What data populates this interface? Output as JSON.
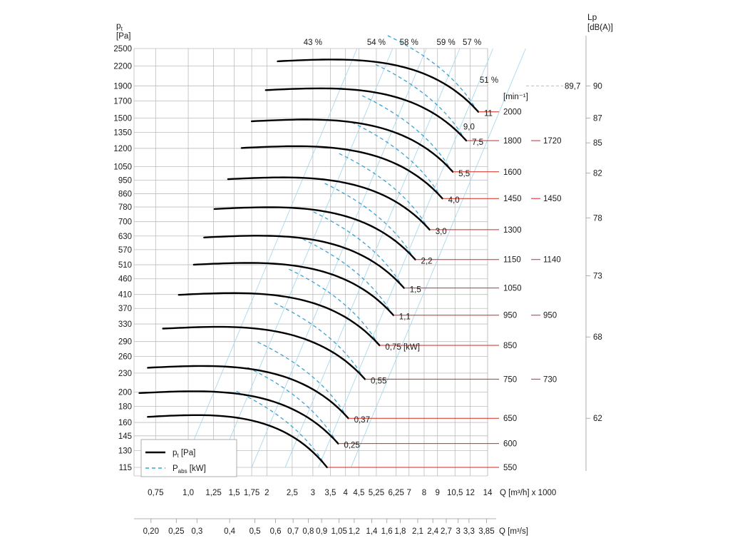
{
  "chart_data": {
    "type": "line",
    "title": "",
    "y_axis": {
      "label": "p",
      "label_sub": "t",
      "unit": "[Pa]",
      "scale": "log",
      "ticks": [
        2500,
        2200,
        1900,
        1700,
        1500,
        1350,
        1200,
        1050,
        950,
        860,
        780,
        700,
        630,
        570,
        510,
        460,
        410,
        370,
        330,
        290,
        260,
        230,
        200,
        180,
        160,
        145,
        130,
        115
      ]
    },
    "x_axis": {
      "label": "Q [m³/h] x 1000",
      "scale": "log",
      "ticks": [
        "0,75",
        "1,0",
        "1,25",
        "1,5",
        "1,75",
        "2",
        "2,5",
        "3",
        "3,5",
        "4",
        "4,5",
        "5,25",
        "6,25",
        "7",
        "8",
        "9",
        "10,5",
        "12",
        "14"
      ],
      "tick_values": [
        0.75,
        1.0,
        1.25,
        1.5,
        1.75,
        2,
        2.5,
        3,
        3.5,
        4,
        4.5,
        5.25,
        6.25,
        7,
        8,
        9,
        10.5,
        12,
        14
      ]
    },
    "x_axis2": {
      "label": "Q [m³/s]",
      "ticks": [
        "0,20",
        "0,25",
        "0,3",
        "0,4",
        "0,5",
        "0,6",
        "0,7",
        "0,8",
        "0,9",
        "1,05",
        "1,2",
        "1,4",
        "1,6",
        "1,8",
        "2,1",
        "2,4",
        "2,7",
        "3",
        "3,3",
        "3,85"
      ],
      "tick_values": [
        0.2,
        0.25,
        0.3,
        0.4,
        0.5,
        0.6,
        0.7,
        0.8,
        0.9,
        1.05,
        1.2,
        1.4,
        1.6,
        1.8,
        2.1,
        2.4,
        2.7,
        3.0,
        3.3,
        3.85
      ]
    },
    "right_axis": {
      "label": "Lp",
      "unit": "[dB(A)]",
      "ticks": [
        90,
        87,
        85,
        82,
        78,
        73,
        68,
        62
      ],
      "tick_pt": [
        1900,
        1500,
        1250,
        1000,
        720,
        470,
        300,
        165
      ]
    },
    "marker": {
      "label": "89,7",
      "pt": 1900
    },
    "speed_unit": "[min⁻¹]",
    "series": [
      {
        "rpm": "550",
        "pt_end": 115,
        "q_start": 0.7,
        "q_end": 3.4,
        "power": "",
        "stub": ""
      },
      {
        "rpm": "600",
        "pt_end": 137,
        "q_start": 0.65,
        "q_end": 3.75,
        "power": "0,25",
        "stub": ""
      },
      {
        "rpm": "650",
        "pt_end": 165,
        "q_start": 0.7,
        "q_end": 4.1,
        "power": "0,37",
        "stub": ""
      },
      {
        "rpm": "750",
        "pt_end": 220,
        "q_start": 0.8,
        "q_end": 4.75,
        "power": "0,55",
        "stub": "730"
      },
      {
        "rpm": "850",
        "pt_end": 282,
        "q_start": 0.92,
        "q_end": 5.4,
        "power": "0,75 [kW]",
        "stub": ""
      },
      {
        "rpm": "950",
        "pt_end": 352,
        "q_start": 1.05,
        "q_end": 6.1,
        "power": "1,1",
        "stub": "950"
      },
      {
        "rpm": "1050",
        "pt_end": 430,
        "q_start": 1.15,
        "q_end": 6.7,
        "power": "1,5",
        "stub": ""
      },
      {
        "rpm": "1150",
        "pt_end": 530,
        "q_start": 1.26,
        "q_end": 7.4,
        "power": "2,2",
        "stub": "1140"
      },
      {
        "rpm": "1300",
        "pt_end": 660,
        "q_start": 1.42,
        "q_end": 8.4,
        "power": "3,0",
        "stub": ""
      },
      {
        "rpm": "1450",
        "pt_end": 830,
        "q_start": 1.6,
        "q_end": 9.4,
        "power": "4,0",
        "stub": "1450"
      },
      {
        "rpm": "1600",
        "pt_end": 1010,
        "q_start": 1.75,
        "q_end": 10.3,
        "power": "5,5",
        "stub": ""
      },
      {
        "rpm": "1800",
        "pt_end": 1270,
        "q_start": 1.98,
        "q_end": 11.6,
        "power": "7,5",
        "stub": "1720"
      },
      {
        "rpm": "2000",
        "pt_end": 1570,
        "q_start": 2.2,
        "q_end": 12.9,
        "power": "11",
        "stub": ""
      }
    ],
    "efficiency_labels": [
      "43 %",
      "54 %",
      "58 %",
      "59 %",
      "57 %",
      "51 %"
    ],
    "extra_power_label": "9,0",
    "legend": [
      {
        "symbol": "p",
        "sub": "t",
        "unit": "[Pa]",
        "style": "solid",
        "color": "#000000"
      },
      {
        "symbol": "P",
        "sub": "abs",
        "unit": "[kW]",
        "style": "dashed",
        "color": "#3aa3d6"
      }
    ],
    "colors": {
      "curve": "#000000",
      "power": "#3aa3d6",
      "rpm_line": "#d9261c",
      "grid": "#bdbdbd"
    }
  }
}
